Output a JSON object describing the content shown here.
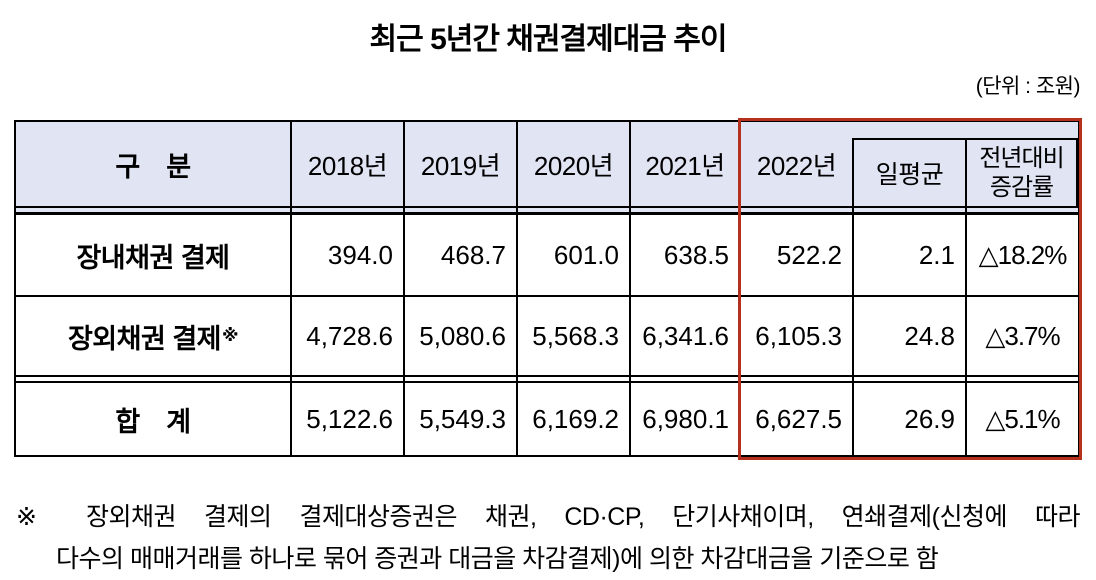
{
  "title": "최근 5년간 채권결제대금 추이",
  "unit_label": "(단위 : 조원)",
  "colors": {
    "accent_red": "#b6301e",
    "header_bg": "#e0e4f3"
  },
  "table": {
    "header": {
      "category": "구　분",
      "years": [
        "2018년",
        "2019년",
        "2020년",
        "2021년",
        "2022년"
      ],
      "daily_avg": "일평균",
      "yoy_line1": "전년대비",
      "yoy_line2": "증감률"
    },
    "rows": [
      {
        "label": "장내채권 결제",
        "label_sup": "",
        "values": [
          "394.0",
          "468.7",
          "601.0",
          "638.5",
          "522.2",
          "2.1",
          "△18.2%"
        ]
      },
      {
        "label": "장외채권 결제",
        "label_sup": "※",
        "values": [
          "4,728.6",
          "5,080.6",
          "5,568.3",
          "6,341.6",
          "6,105.3",
          "24.8",
          "△3.7%"
        ]
      },
      {
        "label": "합　계",
        "label_sup": "",
        "values": [
          "5,122.6",
          "5,549.3",
          "6,169.2",
          "6,980.1",
          "6,627.5",
          "26.9",
          "△5.1%"
        ]
      }
    ]
  },
  "footnote": {
    "line1": "※ 장외채권 결제의 결제대상증권은 채권, CD·CP, 단기사채이며, 연쇄결제(신청에 따라",
    "line2": "다수의 매매거래를 하나로 묶어 증권과 대금을 차감결제)에 의한 차감대금을 기준으로 함"
  }
}
